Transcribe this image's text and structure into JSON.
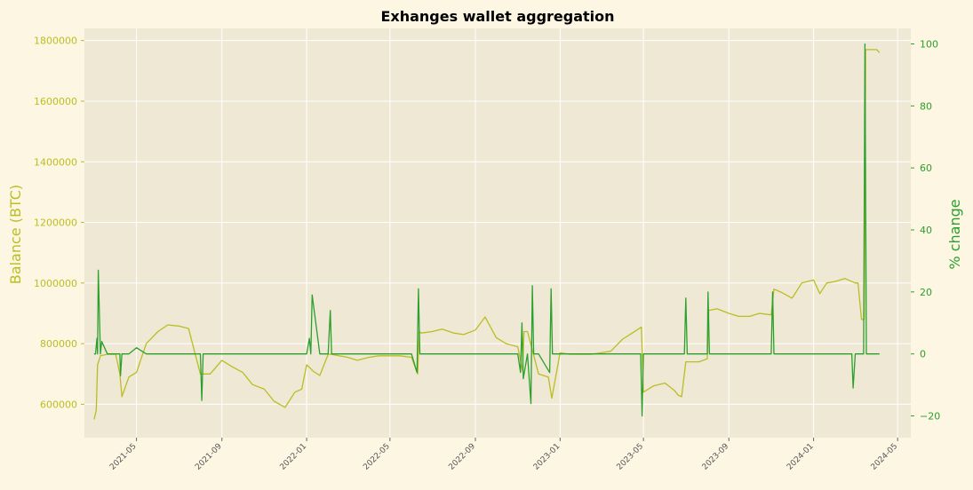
{
  "chart_data": {
    "type": "line",
    "title": "Exhanges wallet aggregation",
    "ylabel": "Balance (BTC)",
    "y2label": "% change",
    "xlim": [
      "2021-02-15",
      "2024-05-20"
    ],
    "ylim": [
      490000,
      1840000
    ],
    "y2lim": [
      -27,
      105
    ],
    "grid": true,
    "colors": {
      "balance": "#bcbd22",
      "pct": "#2ca02c",
      "plot_bg": "#eee8d5",
      "page_bg": "#fdf6e3",
      "grid": "#ffffff"
    },
    "x_ticks": [
      "2021-05",
      "2021-09",
      "2022-01",
      "2022-05",
      "2022-09",
      "2023-01",
      "2023-05",
      "2023-09",
      "2024-01",
      "2024-05"
    ],
    "y_ticks": [
      600000,
      800000,
      1000000,
      1200000,
      1400000,
      1600000,
      1800000
    ],
    "y2_ticks": [
      -20,
      0,
      20,
      40,
      60,
      80,
      100
    ],
    "series": [
      {
        "axis": "left",
        "x": [
          "2021-03-01",
          "2021-03-04",
          "2021-03-06",
          "2021-03-10",
          "2021-03-20",
          "2021-04-01",
          "2021-04-07",
          "2021-04-10",
          "2021-04-20",
          "2021-05-01",
          "2021-05-15",
          "2021-06-01",
          "2021-06-15",
          "2021-07-01",
          "2021-07-15",
          "2021-08-01",
          "2021-08-03",
          "2021-08-15",
          "2021-09-01",
          "2021-09-15",
          "2021-10-01",
          "2021-10-15",
          "2021-11-01",
          "2021-11-15",
          "2021-12-01",
          "2021-12-15",
          "2021-12-25",
          "2022-01-01",
          "2022-01-08",
          "2022-01-10",
          "2022-01-20",
          "2022-02-01",
          "2022-02-05",
          "2022-03-01",
          "2022-03-15",
          "2022-04-01",
          "2022-04-15",
          "2022-05-01",
          "2022-05-15",
          "2022-06-01",
          "2022-06-10",
          "2022-06-12",
          "2022-06-15",
          "2022-07-01",
          "2022-07-15",
          "2022-08-01",
          "2022-08-15",
          "2022-09-01",
          "2022-09-15",
          "2022-10-01",
          "2022-10-15",
          "2022-11-01",
          "2022-11-08",
          "2022-11-10",
          "2022-11-15",
          "2022-12-01",
          "2022-12-15",
          "2022-12-20",
          "2023-01-01",
          "2023-01-15",
          "2023-02-01",
          "2023-02-15",
          "2023-03-01",
          "2023-03-15",
          "2023-04-01",
          "2023-04-15",
          "2023-04-28",
          "2023-05-01",
          "2023-05-15",
          "2023-06-01",
          "2023-06-15",
          "2023-06-20",
          "2023-06-25",
          "2023-07-01",
          "2023-07-20",
          "2023-08-01",
          "2023-08-03",
          "2023-08-15",
          "2023-09-01",
          "2023-09-15",
          "2023-10-01",
          "2023-10-15",
          "2023-11-01",
          "2023-11-05",
          "2023-11-15",
          "2023-12-01",
          "2023-12-15",
          "2024-01-01",
          "2024-01-10",
          "2024-01-20",
          "2024-02-01",
          "2024-02-15",
          "2024-03-01",
          "2024-03-05",
          "2024-03-10",
          "2024-03-14",
          "2024-03-16",
          "2024-04-01",
          "2024-04-05"
        ],
        "values": [
          550000,
          580000,
          730000,
          760000,
          765000,
          765000,
          700000,
          625000,
          690000,
          705000,
          800000,
          840000,
          862000,
          858000,
          850000,
          700000,
          700000,
          700000,
          745000,
          725000,
          705000,
          665000,
          650000,
          610000,
          590000,
          640000,
          650000,
          730000,
          715000,
          710000,
          695000,
          765000,
          765000,
          755000,
          745000,
          755000,
          760000,
          760000,
          760000,
          755000,
          700000,
          840000,
          835000,
          840000,
          848000,
          835000,
          830000,
          845000,
          888000,
          820000,
          800000,
          790000,
          710000,
          840000,
          840000,
          700000,
          690000,
          620000,
          770000,
          765000,
          765000,
          765000,
          770000,
          775000,
          815000,
          835000,
          855000,
          640000,
          660000,
          670000,
          645000,
          630000,
          625000,
          740000,
          740000,
          750000,
          910000,
          915000,
          900000,
          890000,
          890000,
          900000,
          895000,
          980000,
          970000,
          950000,
          1000000,
          1010000,
          965000,
          1000000,
          1005000,
          1015000,
          1000000,
          1000000,
          880000,
          880000,
          1770000,
          1770000,
          1760000
        ]
      },
      {
        "axis": "right",
        "x": [
          "2021-03-01",
          "2021-03-03",
          "2021-03-05",
          "2021-03-06",
          "2021-03-07",
          "2021-03-10",
          "2021-03-12",
          "2021-03-20",
          "2021-04-01",
          "2021-04-07",
          "2021-04-08",
          "2021-04-10",
          "2021-04-20",
          "2021-05-01",
          "2021-05-15",
          "2021-06-01",
          "2021-07-01",
          "2021-08-01",
          "2021-08-03",
          "2021-08-05",
          "2021-08-20",
          "2021-09-01",
          "2021-10-01",
          "2021-11-01",
          "2021-12-01",
          "2021-12-25",
          "2022-01-01",
          "2022-01-05",
          "2022-01-07",
          "2022-01-09",
          "2022-01-20",
          "2022-02-01",
          "2022-02-04",
          "2022-02-06",
          "2022-03-01",
          "2022-04-01",
          "2022-05-01",
          "2022-06-01",
          "2022-06-09",
          "2022-06-11",
          "2022-06-13",
          "2022-07-01",
          "2022-08-01",
          "2022-09-01",
          "2022-10-01",
          "2022-11-01",
          "2022-11-05",
          "2022-11-07",
          "2022-11-09",
          "2022-11-15",
          "2022-11-20",
          "2022-11-22",
          "2022-11-24",
          "2022-12-01",
          "2022-12-17",
          "2022-12-19",
          "2022-12-21",
          "2023-01-01",
          "2023-02-01",
          "2023-03-01",
          "2023-04-01",
          "2023-04-27",
          "2023-04-29",
          "2023-05-01",
          "2023-05-10",
          "2023-06-01",
          "2023-06-29",
          "2023-07-01",
          "2023-07-03",
          "2023-07-15",
          "2023-08-01",
          "2023-08-02",
          "2023-08-04",
          "2023-09-01",
          "2023-10-01",
          "2023-11-01",
          "2023-11-03",
          "2023-11-05",
          "2023-12-01",
          "2024-01-01",
          "2024-02-01",
          "2024-02-25",
          "2024-02-27",
          "2024-03-01",
          "2024-03-13",
          "2024-03-15",
          "2024-03-17",
          "2024-04-01",
          "2024-04-05"
        ],
        "values": [
          0,
          0,
          5,
          0,
          27,
          0,
          4,
          0,
          0,
          0,
          -7,
          0,
          0,
          2,
          0,
          0,
          0,
          0,
          -15,
          0,
          0,
          0,
          0,
          0,
          0,
          0,
          0,
          5,
          0,
          19,
          0,
          0,
          14,
          0,
          0,
          0,
          0,
          0,
          -6,
          21,
          0,
          0,
          0,
          0,
          0,
          0,
          -6,
          10,
          -8,
          0,
          -16,
          22,
          0,
          0,
          -6,
          21,
          0,
          0,
          0,
          0,
          0,
          0,
          -20,
          0,
          0,
          0,
          0,
          18,
          0,
          0,
          0,
          20,
          0,
          0,
          0,
          0,
          20,
          0,
          0,
          0,
          0,
          0,
          -11,
          0,
          0,
          100,
          0,
          0,
          0
        ]
      }
    ]
  }
}
